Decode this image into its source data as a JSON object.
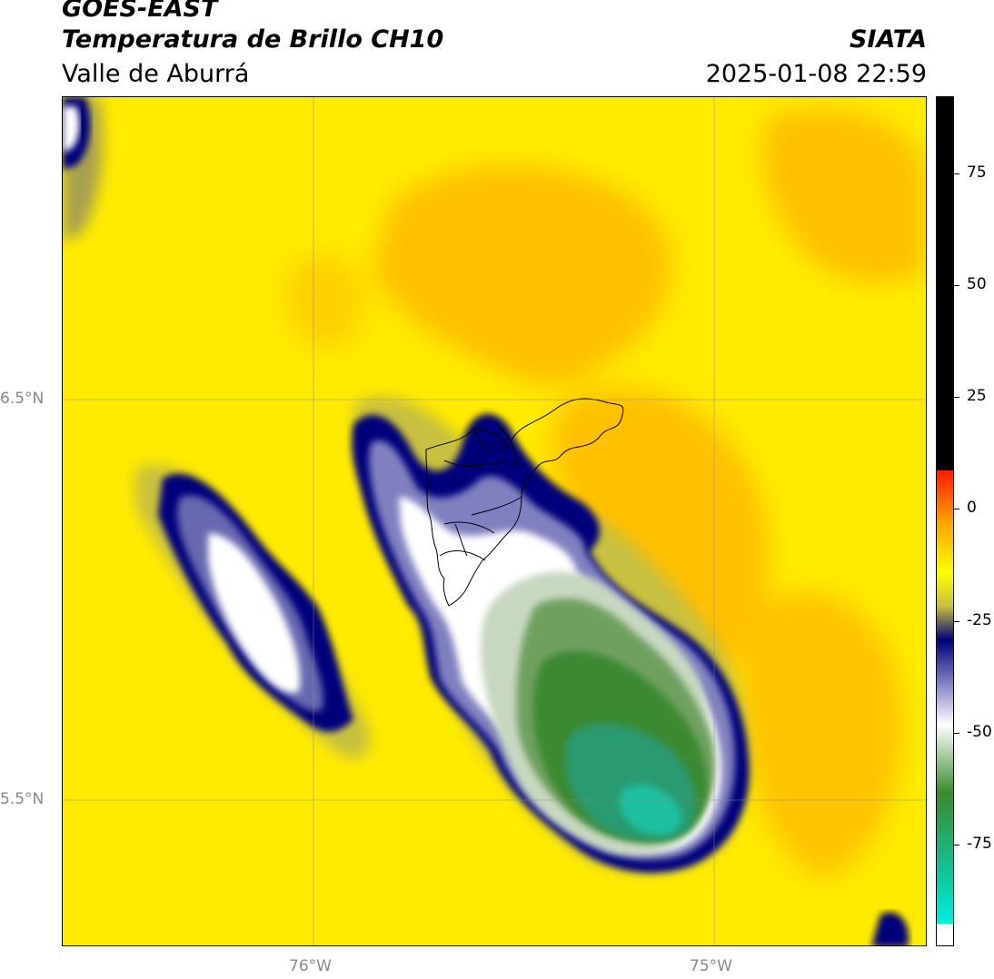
{
  "header": {
    "satellite": "GOES-EAST",
    "product": "Temperatura de Brillo CH10",
    "region": "Valle de Aburrá",
    "agency": "SIATA",
    "datetime": "2025-01-08 22:59"
  },
  "map": {
    "lat_labels": [
      "6.5°N",
      "5.5°N"
    ],
    "lon_labels": [
      "76°W",
      "75°W"
    ]
  },
  "colorbar": {
    "ticks": [
      "75",
      "50",
      "25",
      "0",
      "-25",
      "-50",
      "-75"
    ],
    "colors": {
      "black": "#000000",
      "red": "#ff1a00",
      "orange": "#ffa000",
      "yellow": "#ffff00",
      "navy": "#00007a",
      "white": "#ffffff",
      "green": "#3a8a30",
      "teal": "#10c8a0",
      "cyan": "#00f0e0"
    }
  }
}
